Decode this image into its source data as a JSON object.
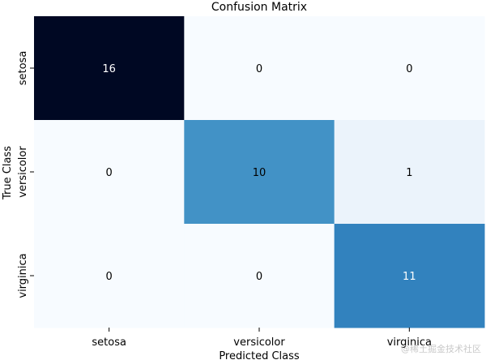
{
  "chart_data": {
    "type": "heatmap",
    "title": "Confusion Matrix",
    "xlabel": "Predicted Class",
    "ylabel": "True Class",
    "x_categories": [
      "setosa",
      "versicolor",
      "virginica"
    ],
    "y_categories": [
      "setosa",
      "versicolor",
      "virginica"
    ],
    "values": [
      [
        16,
        0,
        0
      ],
      [
        0,
        10,
        1
      ],
      [
        0,
        0,
        11
      ]
    ],
    "colormap": "Blues",
    "colorbar": false,
    "annotations": true
  },
  "watermark": "@稀土掘金技术社区"
}
